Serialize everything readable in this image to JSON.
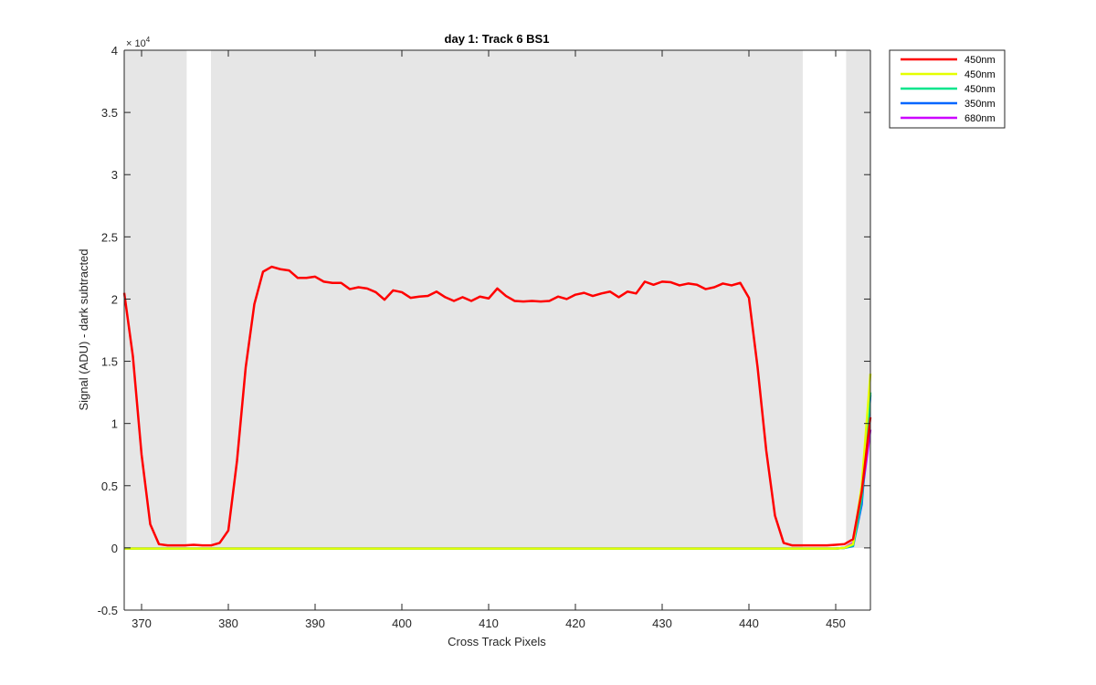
{
  "chart_data": {
    "type": "line",
    "title": "day 1: Track 6  BS1",
    "xlabel": "Cross Track Pixels",
    "ylabel": "Signal (ADU) - dark subtracted",
    "y_multiplier": "× 10",
    "y_multiplier_exponent": "4",
    "xlim": [
      368,
      454
    ],
    "ylim": [
      -5000,
      40000
    ],
    "x_ticks": [
      370,
      380,
      390,
      400,
      410,
      420,
      430,
      440,
      450
    ],
    "x_tick_labels": [
      "370",
      "380",
      "390",
      "400",
      "410",
      "420",
      "430",
      "440",
      "450"
    ],
    "y_ticks": [
      -5000,
      0,
      5000,
      10000,
      15000,
      20000,
      25000,
      30000,
      35000,
      40000
    ],
    "y_tick_labels": [
      "-0.5",
      "0",
      "0.5",
      "1",
      "1.5",
      "2",
      "2.5",
      "3",
      "3.5",
      "4"
    ],
    "grid": false,
    "legend_position": "outside top-right",
    "shaded_regions": [
      {
        "x": [
          368,
          375.2
        ],
        "y": [
          0,
          40000
        ],
        "color": "#e6e6e6"
      },
      {
        "x": [
          378,
          446.2
        ],
        "y": [
          0,
          40000
        ],
        "color": "#e6e6e6"
      },
      {
        "x": [
          451.2,
          454
        ],
        "y": [
          0,
          40000
        ],
        "color": "#e6e6e6"
      }
    ],
    "series": [
      {
        "name": "450nm",
        "color": "#ff0000",
        "x": [
          368,
          369,
          370,
          371,
          372,
          373,
          374,
          375,
          376,
          377,
          378,
          379,
          380,
          381,
          382,
          383,
          384,
          385,
          386,
          387,
          388,
          389,
          390,
          391,
          392,
          393,
          394,
          395,
          396,
          397,
          398,
          399,
          400,
          401,
          402,
          403,
          404,
          405,
          406,
          407,
          408,
          409,
          410,
          411,
          412,
          413,
          414,
          415,
          416,
          417,
          418,
          419,
          420,
          421,
          422,
          423,
          424,
          425,
          426,
          427,
          428,
          429,
          430,
          431,
          432,
          433,
          434,
          435,
          436,
          437,
          438,
          439,
          440,
          441,
          442,
          443,
          444,
          445,
          446,
          447,
          448,
          449,
          450,
          451,
          452,
          453,
          454
        ],
        "y": [
          20500,
          15400,
          7500,
          1900,
          300,
          200,
          200,
          200,
          250,
          200,
          200,
          400,
          1400,
          7000,
          14500,
          19600,
          22200,
          22600,
          22400,
          22300,
          21700,
          21700,
          21800,
          21400,
          21300,
          21300,
          20800,
          20950,
          20850,
          20550,
          19950,
          20700,
          20550,
          20100,
          20200,
          20250,
          20600,
          20150,
          19850,
          20150,
          19850,
          20200,
          20050,
          20850,
          20250,
          19850,
          19800,
          19850,
          19800,
          19850,
          20200,
          20000,
          20350,
          20500,
          20250,
          20450,
          20600,
          20150,
          20600,
          20450,
          21400,
          21150,
          21400,
          21350,
          21100,
          21250,
          21150,
          20800,
          20950,
          21250,
          21100,
          21300,
          20100,
          14500,
          7800,
          2600,
          400,
          200,
          200,
          200,
          200,
          200,
          250,
          300,
          700,
          4500,
          10500
        ]
      },
      {
        "name": "450nm",
        "color": "#e5ff00",
        "x": [
          368,
          450,
          451,
          452,
          453,
          454
        ],
        "y": [
          -50,
          -50,
          0,
          300,
          5000,
          14000
        ]
      },
      {
        "name": "450nm",
        "color": "#00e58c",
        "x": [
          368,
          450,
          451,
          452,
          453,
          454
        ],
        "y": [
          -50,
          -50,
          0,
          200,
          4000,
          12500
        ]
      },
      {
        "name": "350nm",
        "color": "#0066ff",
        "x": [
          368,
          450,
          451,
          452,
          453,
          454
        ],
        "y": [
          -50,
          -50,
          0,
          150,
          3500,
          12300
        ]
      },
      {
        "name": "680nm",
        "color": "#cc00ff",
        "x": [
          368,
          450,
          451,
          452,
          453,
          454
        ],
        "y": [
          -50,
          -50,
          0,
          400,
          4200,
          9500
        ]
      }
    ]
  }
}
